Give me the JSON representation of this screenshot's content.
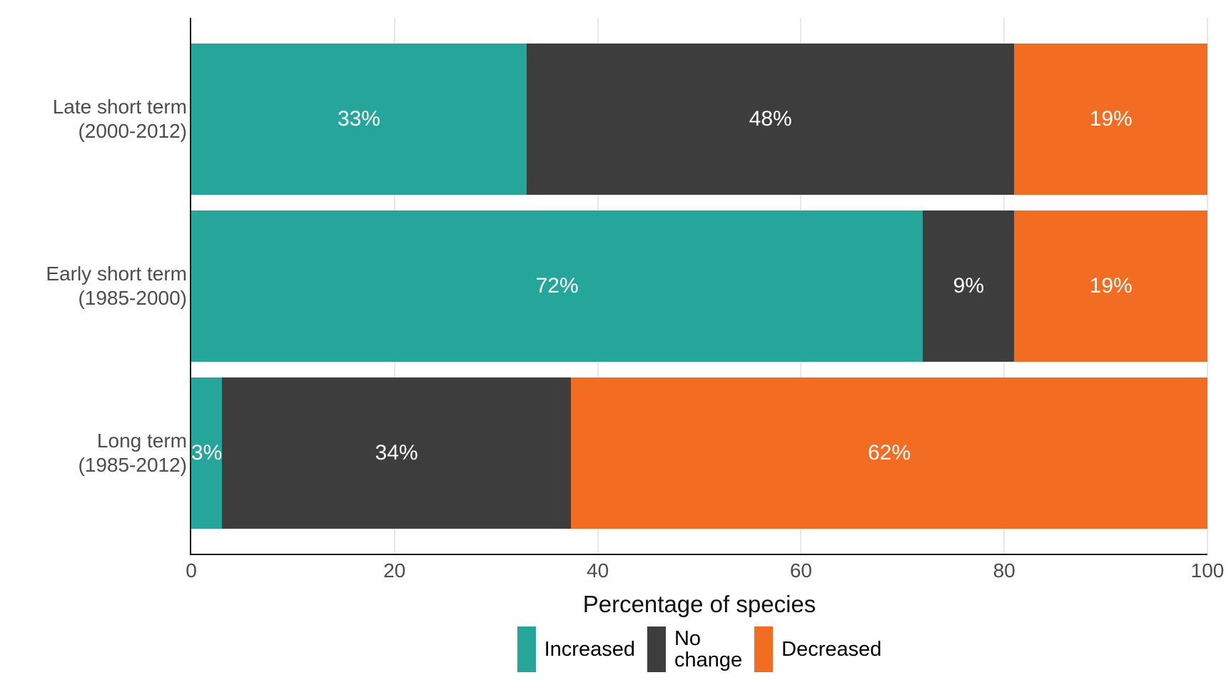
{
  "chart_data": {
    "type": "bar",
    "orientation": "horizontal",
    "stacked": true,
    "title": "",
    "xlabel": "Percentage of species",
    "ylabel": "",
    "xlim": [
      0,
      100
    ],
    "x_ticks": [
      0,
      20,
      40,
      60,
      80,
      100
    ],
    "grid": "vertical-major-only",
    "legend_position": "bottom",
    "categories": [
      {
        "lines": [
          "Late short term",
          "(2000-2012)"
        ]
      },
      {
        "lines": [
          "Early short term",
          "(1985-2000)"
        ]
      },
      {
        "lines": [
          "Long term",
          "(1985-2012)"
        ]
      }
    ],
    "series": [
      {
        "name": "Increased",
        "color": "#26a69a",
        "values": [
          33,
          72,
          3
        ]
      },
      {
        "name": "No change",
        "color": "#3d3d3d",
        "values": [
          48,
          9,
          34
        ]
      },
      {
        "name": "Decreased",
        "color": "#f26d21",
        "values": [
          19,
          19,
          62
        ]
      }
    ],
    "bar_label_suffix": "%",
    "bar_labels": [
      [
        "33%",
        "48%",
        "19%"
      ],
      [
        "72%",
        "9%",
        "19%"
      ],
      [
        "3%",
        "34%",
        "62%"
      ]
    ],
    "legend_entries": [
      {
        "label_lines": [
          "Increased"
        ],
        "color": "#26a69a"
      },
      {
        "label_lines": [
          "No",
          "change"
        ],
        "color": "#3d3d3d"
      },
      {
        "label_lines": [
          "Decreased"
        ],
        "color": "#f26d21"
      }
    ]
  },
  "styles": {
    "series_teal": "#26a69a",
    "series_dark": "#3d3d3d",
    "series_orange": "#f26d21",
    "axis_text_color": "#4d4d4d",
    "axis_line_color": "#1a1a1a",
    "gridline_color": "#e8e8e8",
    "bar_label_color": "#ffffff",
    "background": "#ffffff"
  }
}
